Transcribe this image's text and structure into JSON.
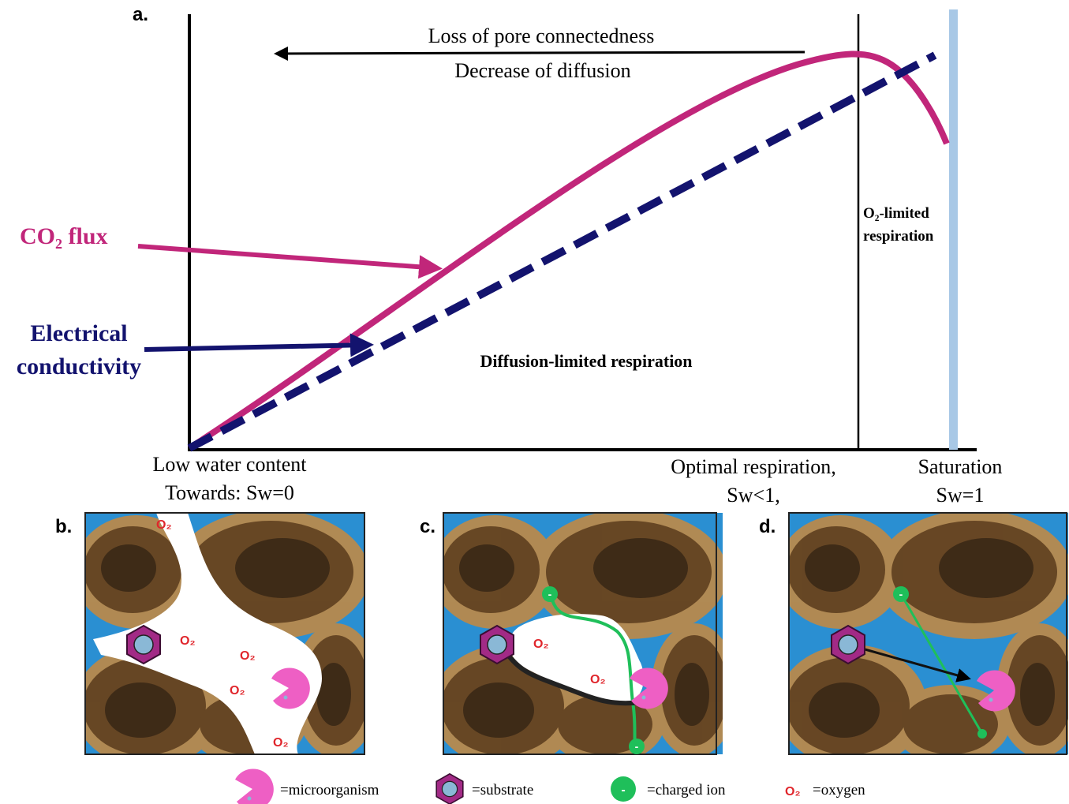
{
  "panel_a": {
    "label": "a.",
    "arrow_text": [
      "Loss of pore connectedness",
      "Decrease  of diffusion"
    ],
    "co2_label": "CO₂ flux",
    "ec_label": [
      "Electrical",
      "conductivity"
    ],
    "diffusion_zone": "Diffusion-limited respiration",
    "o2_zone": [
      "O₂-limited",
      "respiration"
    ],
    "x_labels": {
      "low": [
        "Low water content",
        "Towards:  Sw=0"
      ],
      "optimal": [
        "Optimal respiration,",
        "Sw<1,"
      ],
      "saturation": [
        "Saturation",
        "Sw=1"
      ]
    }
  },
  "panels": [
    {
      "label": "b."
    },
    {
      "label": "c."
    },
    {
      "label": "d."
    }
  ],
  "symbols": {
    "oxygen": "O₂",
    "ion": "-"
  },
  "legend": [
    "=microorganism",
    "=substrate",
    "=charged ion",
    "=oxygen"
  ]
}
